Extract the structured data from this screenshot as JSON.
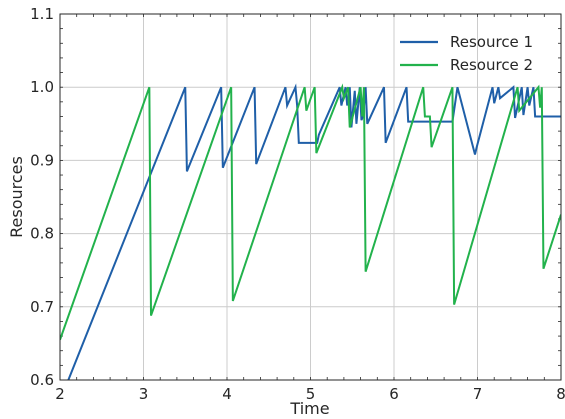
{
  "chart_data": {
    "type": "line",
    "title": "",
    "xlabel": "Time",
    "ylabel": "Resources",
    "xlim": [
      2,
      8
    ],
    "ylim": [
      0.6,
      1.1
    ],
    "xticks": [
      2,
      3,
      4,
      5,
      6,
      7,
      8
    ],
    "yticks": [
      0.6,
      0.7,
      0.8,
      0.9,
      1.0,
      1.1
    ],
    "xtick_labels": [
      "2",
      "3",
      "4",
      "5",
      "6",
      "7",
      "8"
    ],
    "ytick_labels": [
      "0.6",
      "0.7",
      "0.8",
      "0.9",
      "1.0",
      "1.1"
    ],
    "grid": true,
    "minor_ticks": true,
    "legend_position": "top-right",
    "series": [
      {
        "name": "Resource 1",
        "color": "#1f5fa8",
        "x": [
          2.1,
          3.5,
          3.52,
          3.93,
          3.95,
          4.33,
          4.35,
          4.7,
          4.72,
          4.82,
          4.84,
          4.86,
          5.08,
          5.1,
          5.35,
          5.37,
          5.42,
          5.44,
          5.47,
          5.49,
          5.53,
          5.55,
          5.59,
          5.61,
          5.63,
          5.66,
          5.68,
          5.88,
          5.9,
          6.15,
          6.17,
          6.7,
          6.76,
          6.97,
          6.99,
          7.18,
          7.2,
          7.25,
          7.27,
          7.43,
          7.45,
          7.53,
          7.55,
          7.6,
          7.62,
          7.67,
          7.69,
          8.0
        ],
        "y": [
          0.6,
          1.0,
          0.885,
          1.0,
          0.89,
          1.0,
          0.895,
          1.0,
          0.975,
          1.0,
          0.975,
          0.924,
          0.924,
          0.935,
          1.0,
          0.975,
          1.0,
          0.975,
          1.0,
          0.945,
          0.995,
          0.95,
          1.0,
          0.955,
          0.96,
          1.0,
          0.95,
          1.0,
          0.924,
          1.0,
          0.953,
          0.953,
          1.0,
          0.908,
          0.918,
          1.0,
          0.978,
          1.0,
          0.985,
          1.0,
          0.958,
          1.0,
          0.962,
          1.0,
          0.975,
          1.0,
          0.96,
          0.96
        ]
      },
      {
        "name": "Resource 2",
        "color": "#22b24c",
        "x": [
          2.0,
          3.07,
          3.09,
          4.05,
          4.07,
          4.93,
          4.95,
          5.05,
          5.07,
          5.38,
          5.4,
          5.45,
          5.47,
          5.6,
          5.62,
          5.64,
          5.66,
          6.35,
          6.37,
          6.43,
          6.45,
          6.7,
          6.72,
          7.48,
          7.5,
          7.73,
          7.75,
          7.77,
          7.79,
          8.0
        ],
        "y": [
          0.655,
          1.0,
          0.688,
          1.0,
          0.708,
          1.0,
          0.968,
          1.0,
          0.91,
          1.0,
          0.985,
          1.0,
          0.945,
          1.0,
          0.96,
          1.0,
          0.748,
          1.0,
          0.96,
          0.96,
          0.918,
          1.0,
          0.703,
          1.0,
          0.968,
          1.0,
          0.972,
          1.0,
          0.752,
          0.826
        ]
      }
    ]
  }
}
